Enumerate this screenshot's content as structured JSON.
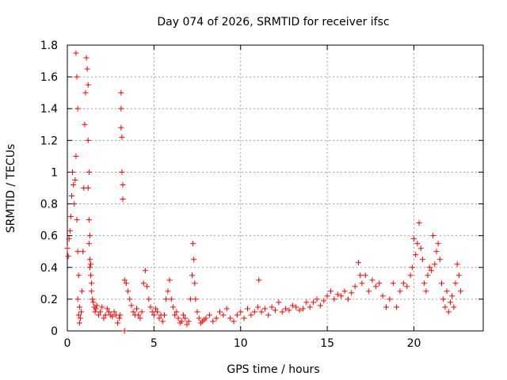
{
  "chart_data": {
    "type": "scatter",
    "title": "Day 074 of 2026, SRMTID for receiver ifsc",
    "xlabel": "GPS time / hours",
    "ylabel": "SRMTID / TECUs",
    "xlim": [
      0,
      24
    ],
    "ylim": [
      0,
      1.8
    ],
    "xticks": [
      0,
      5,
      10,
      15,
      20
    ],
    "xtick_labels": [
      "0",
      "5",
      "10",
      "15",
      "20"
    ],
    "yticks": [
      0,
      0.2,
      0.4,
      0.6,
      0.8,
      1,
      1.2,
      1.4,
      1.6,
      1.8
    ],
    "ytick_labels": [
      "0",
      "0.2",
      "0.4",
      "0.6",
      "0.8",
      "1",
      "1.2",
      "1.4",
      "1.6",
      "1.8"
    ],
    "grid": true,
    "marker": "plus",
    "color": "#ff0000",
    "series": [
      {
        "name": "SRMTID",
        "x": [
          0.0,
          0.05,
          0.1,
          0.15,
          0.2,
          0.25,
          0.3,
          0.35,
          0.4,
          0.45,
          0.5,
          0.5,
          0.55,
          0.55,
          0.6,
          0.6,
          0.6,
          0.65,
          0.65,
          0.7,
          0.7,
          0.75,
          0.8,
          0.85,
          0.9,
          0.95,
          1.0,
          1.05,
          1.1,
          1.15,
          1.2,
          1.2,
          1.2,
          1.25,
          1.25,
          1.25,
          1.3,
          1.3,
          1.3,
          1.35,
          1.35,
          1.4,
          1.4,
          1.45,
          1.5,
          1.55,
          1.6,
          1.65,
          1.7,
          1.8,
          1.9,
          2.0,
          2.1,
          2.2,
          2.3,
          2.4,
          2.5,
          2.6,
          2.7,
          2.8,
          2.9,
          3.0,
          3.05,
          3.1,
          3.1,
          3.1,
          3.15,
          3.15,
          3.2,
          3.2,
          3.3,
          3.3,
          3.4,
          3.5,
          3.6,
          3.7,
          3.8,
          3.9,
          4.0,
          4.1,
          4.2,
          4.3,
          4.4,
          4.5,
          4.6,
          4.7,
          4.8,
          4.9,
          5.0,
          5.1,
          5.2,
          5.3,
          5.4,
          5.5,
          5.6,
          5.7,
          5.8,
          5.9,
          6.0,
          6.1,
          6.2,
          6.3,
          6.4,
          6.5,
          6.6,
          6.7,
          6.8,
          6.9,
          7.0,
          7.1,
          7.2,
          7.25,
          7.3,
          7.35,
          7.4,
          7.5,
          7.6,
          7.7,
          7.8,
          7.9,
          8.0,
          8.2,
          8.4,
          8.6,
          8.8,
          9.0,
          9.2,
          9.4,
          9.6,
          9.8,
          10.0,
          10.2,
          10.4,
          10.6,
          10.8,
          11.0,
          11.05,
          11.2,
          11.4,
          11.6,
          11.8,
          12.0,
          12.2,
          12.4,
          12.6,
          12.8,
          13.0,
          13.2,
          13.4,
          13.6,
          13.8,
          14.0,
          14.2,
          14.4,
          14.6,
          14.8,
          15.0,
          15.2,
          15.4,
          15.6,
          15.8,
          16.0,
          16.2,
          16.4,
          16.6,
          16.8,
          16.9,
          17.0,
          17.2,
          17.4,
          17.6,
          17.8,
          18.0,
          18.2,
          18.4,
          18.6,
          18.8,
          19.0,
          19.2,
          19.4,
          19.6,
          19.8,
          19.9,
          20.0,
          20.1,
          20.2,
          20.3,
          20.4,
          20.5,
          20.6,
          20.7,
          20.8,
          20.9,
          21.0,
          21.1,
          21.2,
          21.3,
          21.4,
          21.5,
          21.6,
          21.7,
          21.8,
          21.9,
          22.0,
          22.1,
          22.2,
          22.3,
          22.4,
          22.5,
          22.6,
          22.7
        ],
        "y": [
          0.52,
          0.47,
          0.58,
          0.63,
          0.72,
          0.85,
          1.0,
          0.92,
          0.8,
          0.95,
          1.75,
          1.1,
          1.6,
          0.7,
          1.4,
          0.5,
          0.2,
          0.35,
          0.1,
          0.15,
          0.05,
          0.08,
          0.12,
          0.25,
          0.5,
          0.9,
          1.3,
          1.5,
          1.72,
          1.65,
          1.55,
          1.2,
          0.9,
          1.0,
          0.7,
          0.55,
          0.6,
          0.45,
          0.4,
          0.42,
          0.35,
          0.3,
          0.25,
          0.2,
          0.18,
          0.15,
          0.12,
          0.14,
          0.16,
          0.1,
          0.12,
          0.15,
          0.08,
          0.1,
          0.14,
          0.12,
          0.1,
          0.09,
          0.12,
          0.1,
          0.05,
          0.08,
          0.1,
          1.5,
          1.4,
          1.28,
          1.22,
          1.0,
          0.92,
          0.83,
          0.0,
          0.32,
          0.3,
          0.25,
          0.2,
          0.16,
          0.12,
          0.1,
          0.14,
          0.1,
          0.08,
          0.12,
          0.3,
          0.38,
          0.28,
          0.2,
          0.15,
          0.12,
          0.1,
          0.14,
          0.12,
          0.08,
          0.1,
          0.06,
          0.1,
          0.2,
          0.25,
          0.32,
          0.2,
          0.15,
          0.1,
          0.12,
          0.08,
          0.05,
          0.06,
          0.1,
          0.08,
          0.04,
          0.06,
          0.2,
          0.35,
          0.55,
          0.45,
          0.3,
          0.2,
          0.12,
          0.08,
          0.05,
          0.06,
          0.07,
          0.08,
          0.1,
          0.06,
          0.08,
          0.12,
          0.1,
          0.14,
          0.08,
          0.06,
          0.1,
          0.12,
          0.08,
          0.14,
          0.1,
          0.12,
          0.15,
          0.32,
          0.12,
          0.14,
          0.1,
          0.15,
          0.13,
          0.18,
          0.12,
          0.14,
          0.13,
          0.16,
          0.15,
          0.13,
          0.14,
          0.18,
          0.15,
          0.18,
          0.2,
          0.16,
          0.19,
          0.22,
          0.25,
          0.2,
          0.23,
          0.22,
          0.25,
          0.2,
          0.24,
          0.28,
          0.43,
          0.35,
          0.3,
          0.35,
          0.25,
          0.32,
          0.28,
          0.3,
          0.22,
          0.15,
          0.2,
          0.3,
          0.15,
          0.25,
          0.3,
          0.28,
          0.35,
          0.4,
          0.58,
          0.48,
          0.55,
          0.68,
          0.52,
          0.45,
          0.3,
          0.25,
          0.35,
          0.4,
          0.38,
          0.6,
          0.42,
          0.5,
          0.55,
          0.45,
          0.3,
          0.2,
          0.15,
          0.25,
          0.12,
          0.18,
          0.22,
          0.15,
          0.3,
          0.42,
          0.35,
          0.25
        ]
      }
    ]
  }
}
